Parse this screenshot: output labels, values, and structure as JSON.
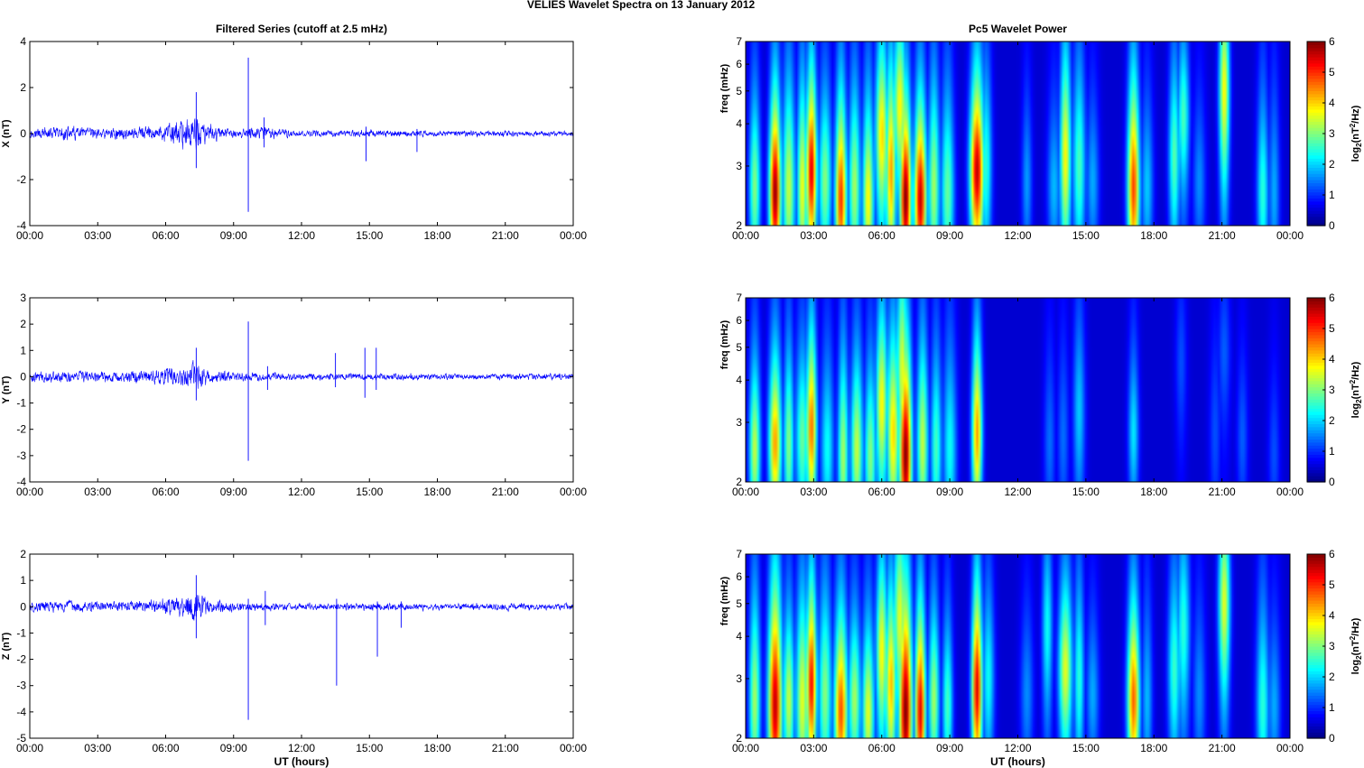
{
  "figure_title": "VELIES Wavelet Spectra on 13 January   2012",
  "colors": {
    "trace": "#0000ff",
    "spectrum_background": "#00008f",
    "colormap": "jet"
  },
  "chart_data": [
    {
      "type": "line",
      "component": "X",
      "title": "Filtered Series (cutoff at 2.5 mHz)",
      "xlabel": "",
      "ylabel": "X (nT)",
      "xlim": [
        0,
        24
      ],
      "ylim": [
        -4,
        4
      ],
      "xticks": [
        "00:00",
        "03:00",
        "06:00",
        "09:00",
        "12:00",
        "15:00",
        "18:00",
        "21:00",
        "00:00"
      ],
      "yticks": [
        -4,
        -2,
        0,
        2,
        4
      ],
      "amplitude_envelope_nT": [
        {
          "t": 0.0,
          "amp": 0.35
        },
        {
          "t": 1.0,
          "amp": 0.4
        },
        {
          "t": 2.0,
          "amp": 0.45
        },
        {
          "t": 3.0,
          "amp": 0.35
        },
        {
          "t": 4.5,
          "amp": 0.4
        },
        {
          "t": 6.0,
          "amp": 0.55
        },
        {
          "t": 6.8,
          "amp": 1.0
        },
        {
          "t": 7.3,
          "amp": 1.2
        },
        {
          "t": 7.8,
          "amp": 0.6
        },
        {
          "t": 9.0,
          "amp": 0.3
        },
        {
          "t": 10.3,
          "amp": 0.5
        },
        {
          "t": 12.0,
          "amp": 0.2
        },
        {
          "t": 15.0,
          "amp": 0.25
        },
        {
          "t": 18.0,
          "amp": 0.18
        },
        {
          "t": 21.0,
          "amp": 0.2
        },
        {
          "t": 24.0,
          "amp": 0.15
        }
      ],
      "spikes": [
        {
          "t": 9.65,
          "min": -3.4,
          "max": 3.3
        },
        {
          "t": 7.35,
          "min": -1.5,
          "max": 1.8
        },
        {
          "t": 10.35,
          "min": -0.6,
          "max": 0.7
        },
        {
          "t": 14.85,
          "min": -1.2,
          "max": 0.3
        },
        {
          "t": 17.1,
          "min": -0.8,
          "max": 0.2
        }
      ]
    },
    {
      "type": "line",
      "component": "Y",
      "title": "",
      "xlabel": "",
      "ylabel": "Y (nT)",
      "xlim": [
        0,
        24
      ],
      "ylim": [
        -4,
        3
      ],
      "xticks": [
        "00:00",
        "03:00",
        "06:00",
        "09:00",
        "12:00",
        "15:00",
        "18:00",
        "21:00",
        "00:00"
      ],
      "yticks": [
        -4,
        -3,
        -2,
        -1,
        0,
        1,
        2,
        3
      ],
      "amplitude_envelope_nT": [
        {
          "t": 0.0,
          "amp": 0.3
        },
        {
          "t": 1.5,
          "amp": 0.35
        },
        {
          "t": 3.0,
          "amp": 0.3
        },
        {
          "t": 5.0,
          "amp": 0.4
        },
        {
          "t": 6.5,
          "amp": 0.6
        },
        {
          "t": 7.3,
          "amp": 0.8
        },
        {
          "t": 8.0,
          "amp": 0.4
        },
        {
          "t": 9.5,
          "amp": 0.25
        },
        {
          "t": 12.0,
          "amp": 0.2
        },
        {
          "t": 15.0,
          "amp": 0.2
        },
        {
          "t": 18.0,
          "amp": 0.18
        },
        {
          "t": 21.0,
          "amp": 0.18
        },
        {
          "t": 24.0,
          "amp": 0.18
        }
      ],
      "spikes": [
        {
          "t": 9.65,
          "min": -3.2,
          "max": 2.1
        },
        {
          "t": 7.35,
          "min": -0.9,
          "max": 1.1
        },
        {
          "t": 13.5,
          "min": -0.4,
          "max": 0.9
        },
        {
          "t": 14.8,
          "min": -0.8,
          "max": 1.1
        },
        {
          "t": 15.3,
          "min": -0.5,
          "max": 1.1
        },
        {
          "t": 10.5,
          "min": -0.5,
          "max": 0.4
        }
      ]
    },
    {
      "type": "line",
      "component": "Z",
      "title": "",
      "xlabel": "UT (hours)",
      "ylabel": "Z (nT)",
      "xlim": [
        0,
        24
      ],
      "ylim": [
        -5,
        2
      ],
      "xticks": [
        "00:00",
        "03:00",
        "06:00",
        "09:00",
        "12:00",
        "15:00",
        "18:00",
        "21:00",
        "00:00"
      ],
      "yticks": [
        -5,
        -4,
        -3,
        -2,
        -1,
        0,
        1,
        2
      ],
      "amplitude_envelope_nT": [
        {
          "t": 0.0,
          "amp": 0.3
        },
        {
          "t": 1.5,
          "amp": 0.35
        },
        {
          "t": 3.0,
          "amp": 0.3
        },
        {
          "t": 5.0,
          "amp": 0.35
        },
        {
          "t": 6.5,
          "amp": 0.55
        },
        {
          "t": 7.3,
          "amp": 0.9
        },
        {
          "t": 8.0,
          "amp": 0.4
        },
        {
          "t": 9.5,
          "amp": 0.25
        },
        {
          "t": 12.0,
          "amp": 0.2
        },
        {
          "t": 15.0,
          "amp": 0.22
        },
        {
          "t": 18.0,
          "amp": 0.2
        },
        {
          "t": 21.0,
          "amp": 0.2
        },
        {
          "t": 24.0,
          "amp": 0.2
        }
      ],
      "spikes": [
        {
          "t": 9.65,
          "min": -4.3,
          "max": 0.3
        },
        {
          "t": 13.55,
          "min": -3.0,
          "max": 0.3
        },
        {
          "t": 15.35,
          "min": -1.9,
          "max": 0.2
        },
        {
          "t": 7.35,
          "min": -1.2,
          "max": 1.2
        },
        {
          "t": 10.4,
          "min": -0.7,
          "max": 0.6
        },
        {
          "t": 16.4,
          "min": -0.8,
          "max": 0.2
        }
      ]
    },
    {
      "type": "heatmap",
      "component": "X",
      "title": "Pc5 Wavelet Power",
      "xlabel": "",
      "ylabel": "freq (mHz)",
      "colorbar_label": "log2(nT^2/Hz)",
      "colorbar_ticks": [
        0,
        1,
        2,
        3,
        4,
        5,
        6
      ],
      "clim": [
        0,
        6
      ],
      "xlim": [
        0,
        24
      ],
      "ylim": [
        2,
        7
      ],
      "yscale": "log",
      "xticks": [
        "00:00",
        "03:00",
        "06:00",
        "09:00",
        "12:00",
        "15:00",
        "18:00",
        "21:00",
        "00:00"
      ],
      "yticks": [
        2,
        3,
        4,
        5,
        6,
        7
      ],
      "bursts": [
        {
          "t": 0.4,
          "f": 2.6,
          "p": 2.8
        },
        {
          "t": 1.3,
          "f": 2.5,
          "p": 5.9
        },
        {
          "t": 1.9,
          "f": 2.6,
          "p": 3.2
        },
        {
          "t": 2.5,
          "f": 2.6,
          "p": 3.5
        },
        {
          "t": 2.9,
          "f": 2.9,
          "p": 5.4
        },
        {
          "t": 3.5,
          "f": 2.7,
          "p": 2.8
        },
        {
          "t": 4.2,
          "f": 2.4,
          "p": 4.9
        },
        {
          "t": 4.8,
          "f": 2.6,
          "p": 3.0
        },
        {
          "t": 5.4,
          "f": 2.4,
          "p": 3.6
        },
        {
          "t": 6.0,
          "f": 3.7,
          "p": 3.8
        },
        {
          "t": 6.4,
          "f": 2.9,
          "p": 4.2
        },
        {
          "t": 6.8,
          "f": 4.5,
          "p": 3.6
        },
        {
          "t": 7.05,
          "f": 2.4,
          "p": 6.0
        },
        {
          "t": 7.7,
          "f": 2.4,
          "p": 5.6
        },
        {
          "t": 8.3,
          "f": 2.6,
          "p": 3.0
        },
        {
          "t": 8.9,
          "f": 2.5,
          "p": 2.6
        },
        {
          "t": 10.2,
          "f": 2.9,
          "p": 5.6
        },
        {
          "t": 10.6,
          "f": 3.0,
          "p": 2.2
        },
        {
          "t": 12.4,
          "f": 2.7,
          "p": 1.3
        },
        {
          "t": 13.6,
          "f": 2.6,
          "p": 1.5
        },
        {
          "t": 14.1,
          "f": 3.2,
          "p": 3.6
        },
        {
          "t": 14.7,
          "f": 3.0,
          "p": 2.4
        },
        {
          "t": 15.3,
          "f": 2.7,
          "p": 1.4
        },
        {
          "t": 17.1,
          "f": 2.6,
          "p": 4.8
        },
        {
          "t": 17.7,
          "f": 2.6,
          "p": 1.6
        },
        {
          "t": 18.9,
          "f": 3.2,
          "p": 2.5
        },
        {
          "t": 19.3,
          "f": 4.2,
          "p": 2.4
        },
        {
          "t": 20.0,
          "f": 2.7,
          "p": 1.2
        },
        {
          "t": 21.1,
          "f": 5.0,
          "p": 3.6
        },
        {
          "t": 22.8,
          "f": 2.5,
          "p": 2.2
        },
        {
          "t": 23.3,
          "f": 2.5,
          "p": 1.4
        }
      ]
    },
    {
      "type": "heatmap",
      "component": "Y",
      "title": "",
      "xlabel": "",
      "ylabel": "freq (mHz)",
      "colorbar_label": "log2(nT^2/Hz)",
      "colorbar_ticks": [
        0,
        1,
        2,
        3,
        4,
        5,
        6
      ],
      "clim": [
        0,
        6
      ],
      "xlim": [
        0,
        24
      ],
      "ylim": [
        2,
        7
      ],
      "yscale": "log",
      "xticks": [
        "00:00",
        "03:00",
        "06:00",
        "09:00",
        "12:00",
        "15:00",
        "18:00",
        "21:00",
        "00:00"
      ],
      "yticks": [
        2,
        3,
        4,
        5,
        6,
        7
      ],
      "bursts": [
        {
          "t": 0.4,
          "f": 2.5,
          "p": 3.2
        },
        {
          "t": 1.3,
          "f": 2.6,
          "p": 4.2
        },
        {
          "t": 1.9,
          "f": 2.6,
          "p": 2.8
        },
        {
          "t": 2.5,
          "f": 2.7,
          "p": 2.6
        },
        {
          "t": 2.9,
          "f": 2.9,
          "p": 4.5
        },
        {
          "t": 3.6,
          "f": 2.5,
          "p": 2.0
        },
        {
          "t": 4.3,
          "f": 2.4,
          "p": 3.0
        },
        {
          "t": 4.9,
          "f": 2.5,
          "p": 3.2
        },
        {
          "t": 5.5,
          "f": 2.4,
          "p": 2.8
        },
        {
          "t": 6.0,
          "f": 3.4,
          "p": 3.6
        },
        {
          "t": 6.5,
          "f": 2.8,
          "p": 3.8
        },
        {
          "t": 6.9,
          "f": 4.3,
          "p": 3.4
        },
        {
          "t": 7.05,
          "f": 2.4,
          "p": 6.0
        },
        {
          "t": 7.8,
          "f": 2.6,
          "p": 3.2
        },
        {
          "t": 8.4,
          "f": 2.5,
          "p": 2.4
        },
        {
          "t": 9.0,
          "f": 2.5,
          "p": 2.0
        },
        {
          "t": 10.2,
          "f": 2.8,
          "p": 4.2
        },
        {
          "t": 13.4,
          "f": 2.6,
          "p": 1.0
        },
        {
          "t": 14.0,
          "f": 2.7,
          "p": 1.0
        },
        {
          "t": 14.7,
          "f": 3.2,
          "p": 1.6
        },
        {
          "t": 17.1,
          "f": 2.8,
          "p": 1.8
        },
        {
          "t": 19.2,
          "f": 4.5,
          "p": 0.8
        },
        {
          "t": 21.1,
          "f": 4.8,
          "p": 0.9
        },
        {
          "t": 20.7,
          "f": 2.8,
          "p": 0.8
        },
        {
          "t": 21.9,
          "f": 2.7,
          "p": 0.9
        },
        {
          "t": 23.3,
          "f": 2.4,
          "p": 0.8
        }
      ]
    },
    {
      "type": "heatmap",
      "component": "Z",
      "title": "",
      "xlabel": "UT (hours)",
      "ylabel": "freq (mHz)",
      "colorbar_label": "log2(nT^2/Hz)",
      "colorbar_ticks": [
        0,
        1,
        2,
        3,
        4,
        5,
        6
      ],
      "clim": [
        0,
        6
      ],
      "xlim": [
        0,
        24
      ],
      "ylim": [
        2,
        7
      ],
      "yscale": "log",
      "xticks": [
        "00:00",
        "03:00",
        "06:00",
        "09:00",
        "12:00",
        "15:00",
        "18:00",
        "21:00",
        "00:00"
      ],
      "yticks": [
        2,
        3,
        4,
        5,
        6,
        7
      ],
      "bursts": [
        {
          "t": 0.4,
          "f": 2.6,
          "p": 3.0
        },
        {
          "t": 1.3,
          "f": 2.5,
          "p": 5.6
        },
        {
          "t": 1.9,
          "f": 2.6,
          "p": 3.2
        },
        {
          "t": 2.5,
          "f": 2.6,
          "p": 3.4
        },
        {
          "t": 2.9,
          "f": 2.9,
          "p": 5.2
        },
        {
          "t": 3.5,
          "f": 2.7,
          "p": 2.8
        },
        {
          "t": 4.2,
          "f": 2.4,
          "p": 4.7
        },
        {
          "t": 4.8,
          "f": 2.6,
          "p": 3.0
        },
        {
          "t": 5.4,
          "f": 2.4,
          "p": 3.4
        },
        {
          "t": 6.0,
          "f": 3.6,
          "p": 3.6
        },
        {
          "t": 6.4,
          "f": 2.9,
          "p": 4.0
        },
        {
          "t": 6.8,
          "f": 4.5,
          "p": 3.4
        },
        {
          "t": 7.05,
          "f": 2.4,
          "p": 6.0
        },
        {
          "t": 7.7,
          "f": 2.4,
          "p": 5.4
        },
        {
          "t": 8.3,
          "f": 2.6,
          "p": 3.0
        },
        {
          "t": 8.9,
          "f": 2.5,
          "p": 2.4
        },
        {
          "t": 10.2,
          "f": 2.8,
          "p": 5.4
        },
        {
          "t": 10.7,
          "f": 3.0,
          "p": 2.0
        },
        {
          "t": 12.4,
          "f": 2.7,
          "p": 1.2
        },
        {
          "t": 13.3,
          "f": 4.2,
          "p": 2.0
        },
        {
          "t": 14.1,
          "f": 3.2,
          "p": 3.4
        },
        {
          "t": 14.7,
          "f": 3.0,
          "p": 2.2
        },
        {
          "t": 15.3,
          "f": 2.7,
          "p": 1.4
        },
        {
          "t": 17.1,
          "f": 2.6,
          "p": 4.6
        },
        {
          "t": 17.7,
          "f": 2.6,
          "p": 1.5
        },
        {
          "t": 18.9,
          "f": 3.2,
          "p": 2.3
        },
        {
          "t": 19.3,
          "f": 4.2,
          "p": 2.2
        },
        {
          "t": 20.0,
          "f": 2.7,
          "p": 1.2
        },
        {
          "t": 21.1,
          "f": 5.0,
          "p": 3.4
        },
        {
          "t": 22.8,
          "f": 2.5,
          "p": 2.2
        },
        {
          "t": 23.3,
          "f": 2.5,
          "p": 1.4
        }
      ]
    }
  ]
}
